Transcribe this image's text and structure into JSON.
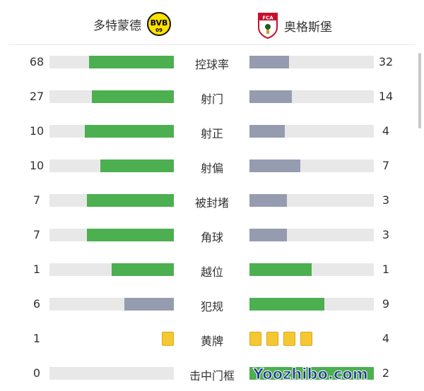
{
  "home": {
    "name": "多特蒙德",
    "logo_text": "BVB 09"
  },
  "away": {
    "name": "奥格斯堡",
    "logo_text": "FCA"
  },
  "colors": {
    "leader": "#4caf50",
    "trailer": "#959cb0",
    "track": "#e8e8e8",
    "card": "#f5c832"
  },
  "stats": [
    {
      "label": "控球率",
      "home": "68",
      "away": "32"
    },
    {
      "label": "射门",
      "home": "27",
      "away": "14"
    },
    {
      "label": "射正",
      "home": "10",
      "away": "4"
    },
    {
      "label": "射偏",
      "home": "10",
      "away": "7"
    },
    {
      "label": "被封堵",
      "home": "7",
      "away": "3"
    },
    {
      "label": "角球",
      "home": "7",
      "away": "3"
    },
    {
      "label": "越位",
      "home": "1",
      "away": "1"
    },
    {
      "label": "犯规",
      "home": "6",
      "away": "9"
    },
    {
      "label": "黄牌",
      "home": "1",
      "away": "4",
      "type": "cards"
    },
    {
      "label": "击中门框",
      "home": "0",
      "away": "2"
    }
  ],
  "watermark": "Yoozhibo.com"
}
